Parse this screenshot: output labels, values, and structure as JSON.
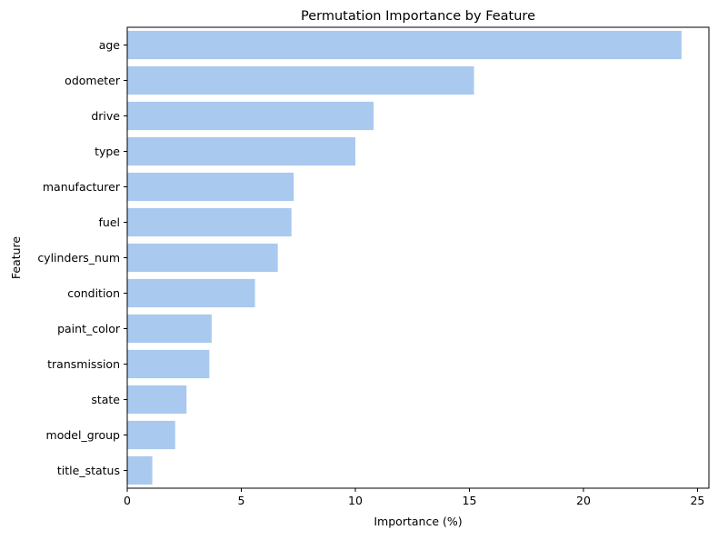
{
  "chart_data": {
    "type": "bar",
    "orientation": "horizontal",
    "title": "Permutation Importance by Feature",
    "xlabel": "Importance (%)",
    "ylabel": "Feature",
    "categories": [
      "age",
      "odometer",
      "drive",
      "type",
      "manufacturer",
      "fuel",
      "cylinders_num",
      "condition",
      "paint_color",
      "transmission",
      "state",
      "model_group",
      "title_status"
    ],
    "values": [
      24.3,
      15.2,
      10.8,
      10.0,
      7.3,
      7.2,
      6.6,
      5.6,
      3.7,
      3.6,
      2.6,
      2.1,
      1.1
    ],
    "xlim": [
      0,
      25.5
    ],
    "xticks": [
      0,
      5,
      10,
      15,
      20,
      25
    ],
    "bar_color": "#a9c9ef",
    "grid": false,
    "legend": false
  }
}
